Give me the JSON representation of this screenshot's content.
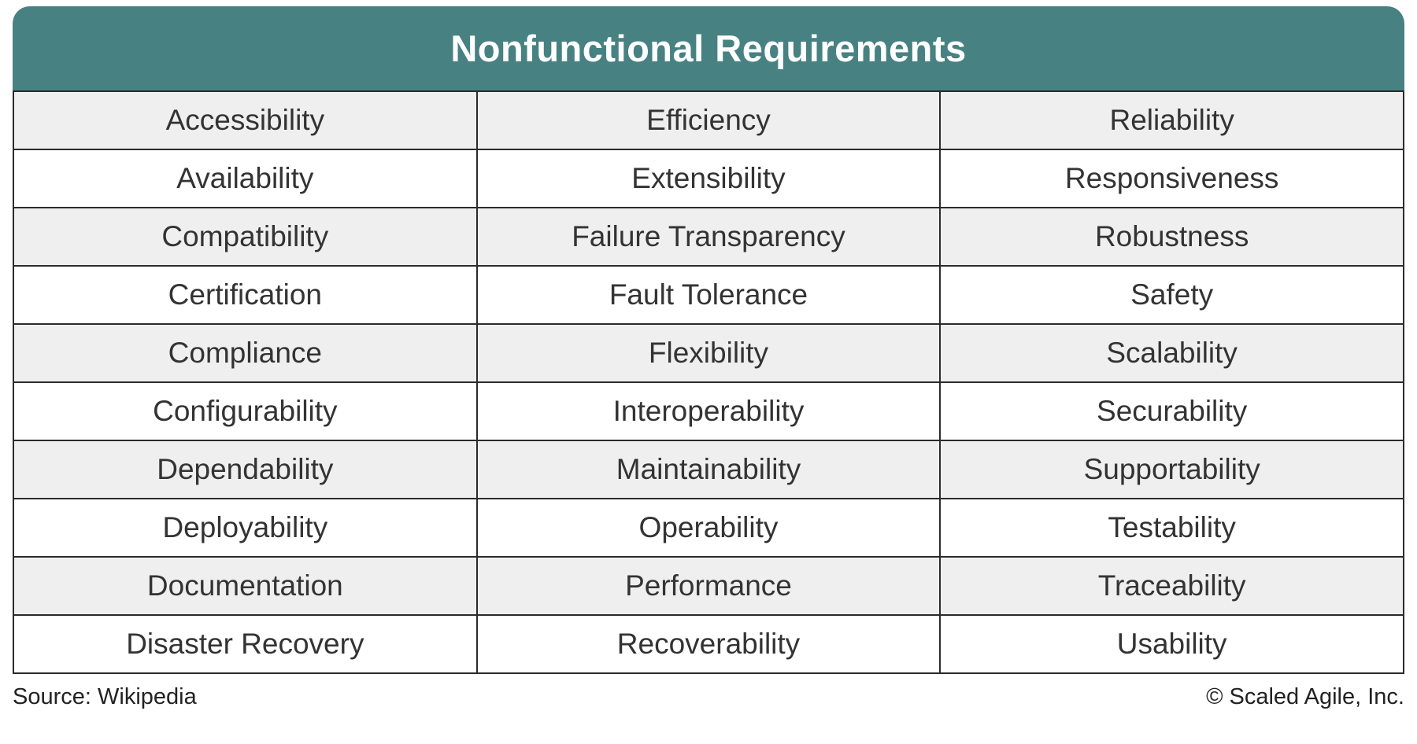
{
  "title": "Nonfunctional Requirements",
  "chart_data": {
    "type": "table",
    "title": "Nonfunctional Requirements",
    "columns": 3,
    "rows": [
      [
        "Accessibility",
        "Efficiency",
        "Reliability"
      ],
      [
        "Availability",
        "Extensibility",
        "Responsiveness"
      ],
      [
        "Compatibility",
        "Failure Transparency",
        "Robustness"
      ],
      [
        "Certification",
        "Fault Tolerance",
        "Safety"
      ],
      [
        "Compliance",
        "Flexibility",
        "Scalability"
      ],
      [
        "Configurability",
        "Interoperability",
        "Securability"
      ],
      [
        "Dependability",
        "Maintainability",
        "Supportability"
      ],
      [
        "Deployability",
        "Operability",
        "Testability"
      ],
      [
        "Documentation",
        "Performance",
        "Traceability"
      ],
      [
        "Disaster Recovery",
        "Recoverability",
        "Usability"
      ]
    ],
    "layout": {
      "alternating_rows": true,
      "first_row_shaded": true,
      "header_style": "teal banner with rounded top corners"
    }
  },
  "footer": {
    "source": "Source: Wikipedia",
    "copyright": "© Scaled Agile, Inc."
  },
  "colors": {
    "header_bg": "#488182",
    "title_text": "#FFFFFF",
    "row_bg": "#FFFFFF",
    "row_alt_bg": "#F0EFEF",
    "border": "#2B2B2B",
    "cell_text": "#333333",
    "footer_text": "#222222"
  }
}
